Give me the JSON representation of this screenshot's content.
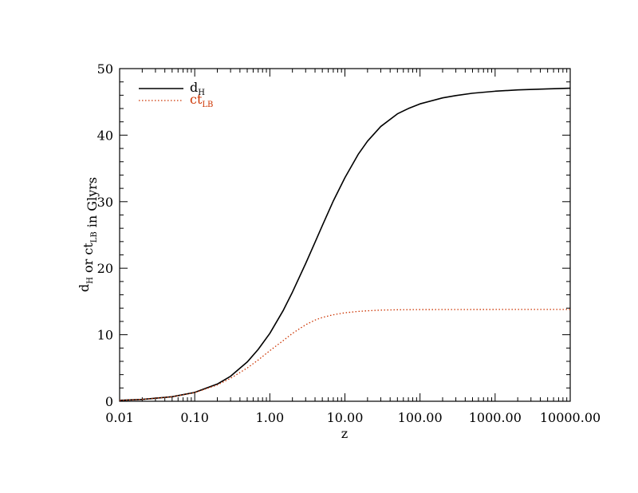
{
  "chart_data": {
    "type": "line",
    "title": "",
    "xlabel": "z",
    "ylabel": {
      "parts": [
        {
          "text": "d",
          "sub": "H"
        },
        {
          "text": " or ct",
          "sub": "LB"
        },
        {
          "text": " in Glyrs",
          "sub": ""
        }
      ]
    },
    "x_scale": "log",
    "xlim": [
      0.01,
      10000
    ],
    "ylim": [
      0,
      50
    ],
    "x_ticks": [
      0.01,
      0.1,
      1,
      10,
      100,
      1000,
      10000
    ],
    "x_tick_labels": [
      "0.01",
      "0.10",
      "1.00",
      "10.00",
      "100.00",
      "1000.00",
      "10000.00"
    ],
    "y_ticks": [
      0,
      10,
      20,
      30,
      40,
      50
    ],
    "y_tick_labels": [
      "0",
      "10",
      "20",
      "30",
      "40",
      "50"
    ],
    "grid": false,
    "legend_position": "top-left",
    "series": [
      {
        "name": "d",
        "name_sub": "H",
        "color": "#000000",
        "style": "solid",
        "x": [
          0.01,
          0.02,
          0.05,
          0.1,
          0.2,
          0.3,
          0.5,
          0.7,
          1,
          1.5,
          2,
          3,
          4,
          5,
          7,
          10,
          15,
          20,
          30,
          50,
          70,
          100,
          200,
          300,
          500,
          1000,
          2000,
          5000,
          10000
        ],
        "y": [
          0.14,
          0.28,
          0.68,
          1.33,
          2.59,
          3.76,
          5.9,
          7.79,
          10.2,
          13.6,
          16.4,
          20.7,
          23.9,
          26.4,
          30.1,
          33.6,
          37.1,
          39.1,
          41.3,
          43.2,
          44.0,
          44.7,
          45.6,
          45.95,
          46.3,
          46.6,
          46.8,
          46.95,
          47.05
        ]
      },
      {
        "name": "ct",
        "name_sub": "LB",
        "color": "#cc3300",
        "style": "dotted",
        "x": [
          0.01,
          0.02,
          0.05,
          0.1,
          0.2,
          0.3,
          0.5,
          0.7,
          1,
          1.5,
          2,
          3,
          4,
          5,
          7,
          10,
          15,
          20,
          30,
          50,
          100,
          1000,
          10000
        ],
        "y": [
          0.14,
          0.28,
          0.67,
          1.3,
          2.45,
          3.45,
          5.0,
          6.2,
          7.6,
          9.1,
          10.2,
          11.5,
          12.2,
          12.6,
          13.0,
          13.3,
          13.5,
          13.6,
          13.7,
          13.75,
          13.78,
          13.8,
          13.8
        ]
      }
    ]
  }
}
